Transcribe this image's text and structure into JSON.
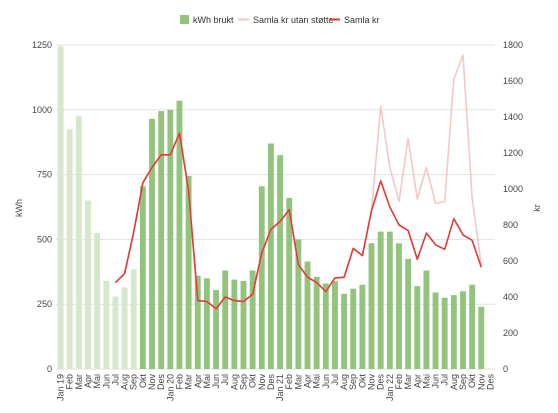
{
  "chart_data": {
    "type": "bar",
    "title": "",
    "legend_position": "top-center",
    "grid": true,
    "categories": [
      "Jan 19",
      "Feb",
      "Mar",
      "Apr",
      "Mai",
      "Jun",
      "Jul",
      "Aug",
      "Sep",
      "Okt",
      "Nov",
      "Des",
      "Jan 20",
      "Feb",
      "Mar",
      "Apr",
      "Mai",
      "Jun",
      "Jul",
      "Aug",
      "Sep",
      "Okt",
      "Nov",
      "Des",
      "Jan 21",
      "Feb",
      "Mar",
      "Apr",
      "Mai",
      "Jun",
      "Jul",
      "Aug",
      "Sep",
      "Okt",
      "Nov",
      "Des",
      "Jan 22",
      "Feb",
      "Mar",
      "Apr",
      "Mai",
      "Jun",
      "Jul",
      "Aug",
      "Sep",
      "Okt",
      "Nov",
      "Des"
    ],
    "left_axis": {
      "label": "kWh",
      "ylim": [
        0,
        1250
      ],
      "ticks": [
        "0",
        "250",
        "500",
        "750",
        "1000",
        "1250"
      ]
    },
    "right_axis": {
      "label": "kr",
      "ylim": [
        0,
        1800
      ],
      "ticks": [
        "0",
        "200",
        "400",
        "600",
        "800",
        "1000",
        "1200",
        "1400",
        "1600",
        "1800"
      ]
    },
    "series": [
      {
        "name": "kWh brukt",
        "kind": "bar",
        "axis": "left",
        "color": "#93c47d",
        "faded_color": "#d5e8cc",
        "faded_until_index": 8,
        "values": [
          1245,
          925,
          975,
          650,
          525,
          340,
          280,
          315,
          385,
          705,
          965,
          995,
          1000,
          1035,
          745,
          360,
          350,
          305,
          380,
          345,
          340,
          380,
          705,
          870,
          825,
          660,
          500,
          415,
          355,
          330,
          340,
          290,
          310,
          325,
          485,
          530,
          530,
          485,
          425,
          320,
          380,
          295,
          275,
          285,
          300,
          325,
          240,
          null
        ]
      },
      {
        "name": "Samla kr utan støtte",
        "kind": "line",
        "axis": "right",
        "color": "#f4c7c7",
        "values": [
          null,
          null,
          null,
          null,
          null,
          null,
          480,
          530,
          760,
          1035,
          1120,
          1190,
          1190,
          1310,
          990,
          380,
          375,
          335,
          400,
          380,
          375,
          415,
          645,
          775,
          820,
          885,
          580,
          510,
          480,
          430,
          505,
          510,
          670,
          630,
          880,
          1460,
          1120,
          930,
          1280,
          945,
          1120,
          920,
          930,
          1610,
          1745,
          950,
          580,
          null
        ]
      },
      {
        "name": "Samla kr",
        "kind": "line",
        "axis": "right",
        "color": "#e03b36",
        "values": [
          null,
          null,
          null,
          null,
          null,
          null,
          480,
          530,
          760,
          1035,
          1120,
          1190,
          1190,
          1310,
          990,
          380,
          375,
          335,
          400,
          380,
          375,
          415,
          645,
          775,
          820,
          885,
          580,
          510,
          480,
          430,
          505,
          510,
          670,
          630,
          880,
          1045,
          900,
          800,
          770,
          610,
          755,
          690,
          665,
          835,
          745,
          715,
          565,
          null
        ]
      }
    ]
  }
}
